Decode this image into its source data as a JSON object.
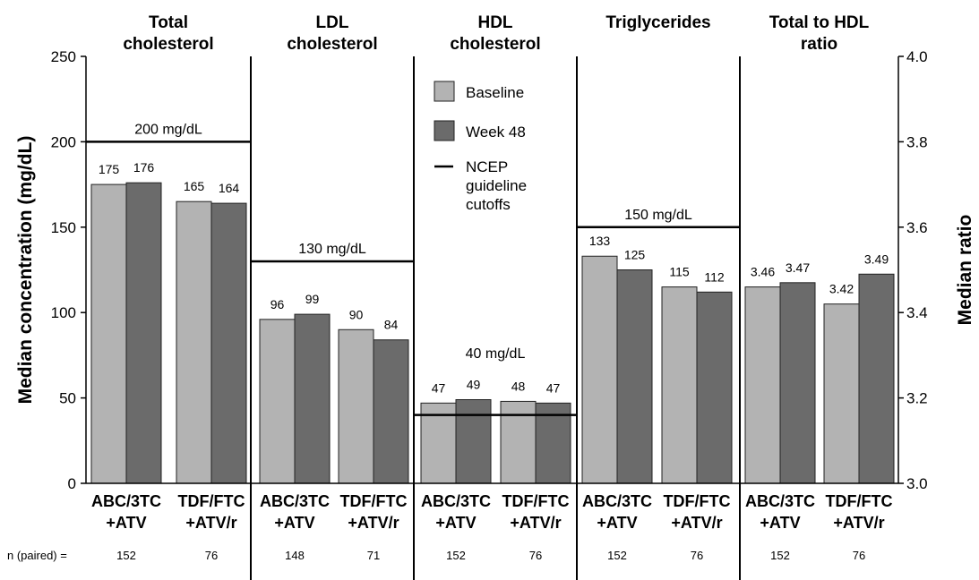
{
  "chart_data": {
    "type": "bar",
    "y_left": {
      "label": "Median concentration (mg/dL)",
      "ylim": [
        0,
        250
      ],
      "ticks": [
        "0",
        "50",
        "100",
        "150",
        "200",
        "250"
      ]
    },
    "y_right": {
      "label": "Median ratio",
      "ylim": [
        3.0,
        4.0
      ],
      "ticks": [
        "3.0",
        "3.2",
        "3.4",
        "3.6",
        "3.8",
        "4.0"
      ]
    },
    "series_colors": {
      "Baseline": "#b3b3b3",
      "Week 48": "#6b6b6b"
    },
    "legend": {
      "placement": "upper-center",
      "items": [
        {
          "label": "Baseline",
          "kind": "box",
          "color": "#b3b3b3"
        },
        {
          "label": "Week 48",
          "kind": "box",
          "color": "#6b6b6b"
        },
        {
          "label": "NCEP guideline cutoffs",
          "lines": [
            "NCEP",
            "guideline",
            "cutoffs"
          ],
          "kind": "line",
          "color": "#000000"
        }
      ]
    },
    "n_row": {
      "label": "n (paired) =",
      "values": [
        "152",
        "76",
        "148",
        "71",
        "152",
        "76",
        "152",
        "76",
        "152",
        "76"
      ]
    },
    "panels": [
      {
        "title": [
          "Total",
          "cholesterol"
        ],
        "axis": "left",
        "cutoff": 200,
        "cutoff_label": "200 mg/dL",
        "groups": [
          {
            "label": [
              "ABC/3TC",
              "+ATV"
            ],
            "baseline": 175,
            "week48": 176,
            "baseline_label": "175",
            "week48_label": "176"
          },
          {
            "label": [
              "TDF/FTC",
              "+ATV/r"
            ],
            "baseline": 165,
            "week48": 164,
            "baseline_label": "165",
            "week48_label": "164"
          }
        ]
      },
      {
        "title": [
          "LDL",
          "cholesterol"
        ],
        "axis": "left",
        "cutoff": 130,
        "cutoff_label": "130 mg/dL",
        "groups": [
          {
            "label": [
              "ABC/3TC",
              "+ATV"
            ],
            "baseline": 96,
            "week48": 99,
            "baseline_label": "96",
            "week48_label": "99"
          },
          {
            "label": [
              "TDF/FTC",
              "+ATV/r"
            ],
            "baseline": 90,
            "week48": 84,
            "baseline_label": "90",
            "week48_label": "84"
          }
        ]
      },
      {
        "title": [
          "HDL",
          "cholesterol"
        ],
        "axis": "left",
        "cutoff": 40,
        "cutoff_label": "40 mg/dL",
        "groups": [
          {
            "label": [
              "ABC/3TC",
              "+ATV"
            ],
            "baseline": 47,
            "week48": 49,
            "baseline_label": "47",
            "week48_label": "49"
          },
          {
            "label": [
              "TDF/FTC",
              "+ATV/r"
            ],
            "baseline": 48,
            "week48": 47,
            "baseline_label": "48",
            "week48_label": "47"
          }
        ]
      },
      {
        "title": [
          "Triglycerides"
        ],
        "axis": "left",
        "cutoff": 150,
        "cutoff_label": "150 mg/dL",
        "groups": [
          {
            "label": [
              "ABC/3TC",
              "+ATV"
            ],
            "baseline": 133,
            "week48": 125,
            "baseline_label": "133",
            "week48_label": "125"
          },
          {
            "label": [
              "TDF/FTC",
              "+ATV/r"
            ],
            "baseline": 115,
            "week48": 112,
            "baseline_label": "115",
            "week48_label": "112"
          }
        ]
      },
      {
        "title": [
          "Total to HDL",
          "ratio"
        ],
        "axis": "right",
        "cutoff": null,
        "cutoff_label": "",
        "groups": [
          {
            "label": [
              "ABC/3TC",
              "+ATV"
            ],
            "baseline": 3.46,
            "week48": 3.47,
            "baseline_label": "3.46",
            "week48_label": "3.47"
          },
          {
            "label": [
              "TDF/FTC",
              "+ATV/r"
            ],
            "baseline": 3.42,
            "week48": 3.49,
            "baseline_label": "3.42",
            "week48_label": "3.49"
          }
        ]
      }
    ]
  }
}
